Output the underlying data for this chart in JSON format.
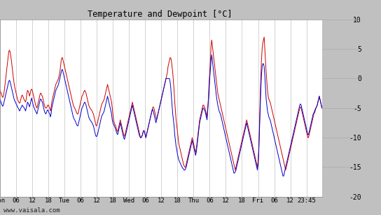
{
  "title": "Temperature and Dewpoint [°C]",
  "ylim": [
    -20,
    10
  ],
  "yticks": [
    10,
    5,
    0,
    -5,
    -10,
    -15,
    -20
  ],
  "fig_bg": "#c0c0c0",
  "plot_bg": "#ffffff",
  "grid_color": "#c0c0c0",
  "temp_color": "#cc0000",
  "dewp_color": "#0000cc",
  "linewidth": 0.7,
  "watermark": "www.vaisala.com",
  "x_tick_labels_str": [
    "Mon",
    "06",
    "12",
    "18",
    "Tue",
    "06",
    "12",
    "18",
    "Wed",
    "06",
    "12",
    "18",
    "Thu",
    "06",
    "12",
    "18",
    "Fri",
    "06",
    "12",
    "23:45"
  ],
  "xtick_positions": [
    0,
    24,
    48,
    72,
    96,
    120,
    144,
    168,
    192,
    216,
    240,
    264,
    288,
    312,
    336,
    360,
    384,
    408,
    432,
    456
  ],
  "total_hours": 479,
  "temp_data": [
    -2.0,
    -2.3,
    -2.6,
    -3.0,
    -3.2,
    -3.0,
    -2.4,
    -1.5,
    -0.5,
    0.5,
    1.5,
    2.5,
    3.5,
    4.5,
    4.8,
    4.5,
    3.8,
    3.0,
    2.0,
    1.0,
    0.0,
    -0.8,
    -1.5,
    -2.0,
    -2.5,
    -3.0,
    -3.5,
    -3.8,
    -4.0,
    -4.2,
    -4.0,
    -3.5,
    -3.0,
    -2.8,
    -3.0,
    -3.3,
    -3.6,
    -3.8,
    -4.0,
    -3.5,
    -2.5,
    -2.0,
    -2.2,
    -2.5,
    -3.0,
    -2.5,
    -2.0,
    -1.8,
    -2.0,
    -2.5,
    -3.0,
    -3.5,
    -4.0,
    -4.5,
    -4.8,
    -5.0,
    -4.5,
    -4.0,
    -3.5,
    -3.0,
    -2.5,
    -2.5,
    -2.8,
    -3.0,
    -3.5,
    -4.0,
    -4.5,
    -4.8,
    -5.0,
    -5.0,
    -4.8,
    -4.5,
    -4.5,
    -4.8,
    -5.0,
    -5.5,
    -5.0,
    -4.0,
    -3.5,
    -3.0,
    -2.5,
    -2.0,
    -1.5,
    -1.0,
    -0.8,
    -0.5,
    -0.3,
    0.0,
    0.5,
    1.0,
    2.0,
    3.0,
    3.5,
    3.5,
    3.0,
    2.5,
    2.0,
    1.5,
    1.0,
    0.5,
    0.0,
    -0.5,
    -1.0,
    -1.5,
    -2.0,
    -2.5,
    -3.0,
    -3.5,
    -4.0,
    -4.5,
    -4.8,
    -5.0,
    -5.2,
    -5.5,
    -5.8,
    -6.0,
    -6.0,
    -5.5,
    -5.0,
    -4.5,
    -4.0,
    -3.5,
    -3.0,
    -2.8,
    -2.5,
    -2.2,
    -2.0,
    -2.2,
    -2.5,
    -3.0,
    -3.5,
    -4.0,
    -4.5,
    -4.8,
    -5.0,
    -5.2,
    -5.3,
    -5.5,
    -5.8,
    -6.0,
    -6.5,
    -7.0,
    -7.5,
    -8.0,
    -8.0,
    -7.5,
    -7.0,
    -6.5,
    -6.0,
    -5.5,
    -5.0,
    -4.5,
    -4.2,
    -4.0,
    -3.8,
    -3.5,
    -3.0,
    -2.5,
    -2.0,
    -1.5,
    -1.0,
    -1.5,
    -2.0,
    -2.5,
    -3.0,
    -3.5,
    -4.0,
    -5.0,
    -6.0,
    -7.0,
    -7.5,
    -7.8,
    -8.0,
    -8.5,
    -8.8,
    -9.0,
    -8.5,
    -8.0,
    -7.5,
    -7.0,
    -7.5,
    -8.0,
    -8.5,
    -9.0,
    -9.5,
    -9.8,
    -9.5,
    -9.0,
    -8.5,
    -8.0,
    -7.5,
    -7.0,
    -6.5,
    -6.0,
    -5.5,
    -5.0,
    -4.5,
    -4.0,
    -4.5,
    -5.0,
    -5.5,
    -6.0,
    -6.5,
    -7.0,
    -7.5,
    -8.0,
    -8.5,
    -9.0,
    -9.5,
    -10.0,
    -10.0,
    -9.8,
    -9.5,
    -9.0,
    -8.8,
    -9.0,
    -9.5,
    -10.0,
    -9.5,
    -9.0,
    -8.5,
    -8.0,
    -7.5,
    -7.0,
    -6.5,
    -6.0,
    -5.5,
    -5.0,
    -4.8,
    -5.0,
    -5.5,
    -6.0,
    -6.5,
    -7.0,
    -6.5,
    -6.0,
    -5.5,
    -5.0,
    -4.5,
    -4.0,
    -3.5,
    -3.0,
    -2.5,
    -2.0,
    -1.5,
    -1.0,
    -0.5,
    0.0,
    0.5,
    1.0,
    2.0,
    2.5,
    3.0,
    3.5,
    3.5,
    3.0,
    2.0,
    1.0,
    -0.5,
    -2.0,
    -4.0,
    -5.5,
    -7.0,
    -8.0,
    -9.0,
    -10.0,
    -11.0,
    -11.5,
    -12.0,
    -12.5,
    -13.0,
    -13.5,
    -14.0,
    -14.5,
    -14.8,
    -15.0,
    -15.0,
    -14.5,
    -14.0,
    -13.5,
    -13.0,
    -12.5,
    -12.0,
    -11.5,
    -11.0,
    -10.5,
    -10.0,
    -10.5,
    -11.0,
    -11.5,
    -12.0,
    -12.5,
    -12.0,
    -11.0,
    -10.0,
    -9.0,
    -8.0,
    -7.0,
    -6.5,
    -6.0,
    -5.5,
    -5.0,
    -4.5,
    -4.5,
    -4.8,
    -5.0,
    -5.5,
    -6.0,
    -6.5,
    -5.0,
    -3.5,
    -1.0,
    1.0,
    3.0,
    5.5,
    6.5,
    5.5,
    4.5,
    3.5,
    2.5,
    1.5,
    0.5,
    -0.5,
    -1.5,
    -2.5,
    -3.0,
    -3.5,
    -4.0,
    -4.5,
    -5.0,
    -5.5,
    -6.0,
    -6.5,
    -7.0,
    -7.5,
    -8.0,
    -8.5,
    -9.0,
    -9.5,
    -10.0,
    -10.5,
    -11.0,
    -11.5,
    -12.0,
    -12.5,
    -13.0,
    -13.5,
    -14.0,
    -14.5,
    -15.0,
    -15.5,
    -15.0,
    -14.5,
    -14.0,
    -13.5,
    -13.0,
    -12.5,
    -12.0,
    -11.5,
    -11.0,
    -10.5,
    -10.0,
    -9.5,
    -9.0,
    -8.5,
    -8.0,
    -7.5,
    -7.0,
    -7.5,
    -8.0,
    -8.5,
    -9.0,
    -9.5,
    -10.0,
    -10.5,
    -11.0,
    -11.5,
    -12.0,
    -12.5,
    -13.0,
    -13.5,
    -14.0,
    -14.5,
    -15.0,
    -14.0,
    -12.0,
    -8.0,
    -4.0,
    0.0,
    3.0,
    5.0,
    6.0,
    6.5,
    7.0,
    5.0,
    3.0,
    1.0,
    -0.5,
    -2.0,
    -3.0,
    -3.5,
    -3.8,
    -4.0,
    -4.5,
    -5.0,
    -5.5,
    -6.0,
    -6.5,
    -7.0,
    -7.5,
    -8.0,
    -8.5,
    -9.0,
    -9.5,
    -10.0,
    -10.5,
    -11.0,
    -11.5,
    -12.0,
    -12.5,
    -13.0,
    -13.5,
    -14.0,
    -14.5,
    -15.0,
    -15.5,
    -15.0,
    -14.5,
    -14.0,
    -13.5,
    -13.0,
    -12.5,
    -12.0,
    -11.5,
    -11.0,
    -10.5,
    -10.0,
    -9.5,
    -9.0,
    -8.5,
    -8.0,
    -7.5,
    -7.0,
    -6.5,
    -6.0,
    -5.5,
    -5.0,
    -4.8,
    -5.0,
    -5.5,
    -6.0,
    -6.5,
    -7.0,
    -7.5,
    -8.0,
    -8.5,
    -9.0,
    -9.5,
    -10.0,
    -10.0,
    -9.5,
    -9.0,
    -8.5,
    -8.0,
    -7.5,
    -7.0,
    -6.5,
    -6.0,
    -5.8,
    -5.5,
    -5.0,
    -4.8,
    -4.5,
    -4.0,
    -3.5,
    -3.0,
    -3.5,
    -4.0,
    -4.5,
    -5.0
  ],
  "dewp_data": [
    -3.5,
    -3.8,
    -4.2,
    -4.5,
    -4.7,
    -4.5,
    -4.0,
    -3.5,
    -3.0,
    -2.5,
    -2.0,
    -1.5,
    -1.0,
    -0.5,
    -0.3,
    -0.5,
    -1.0,
    -1.5,
    -2.0,
    -2.5,
    -3.0,
    -3.5,
    -3.8,
    -4.0,
    -4.3,
    -4.5,
    -4.8,
    -5.0,
    -5.2,
    -5.5,
    -5.3,
    -5.0,
    -4.8,
    -4.5,
    -4.7,
    -4.8,
    -5.0,
    -5.2,
    -5.5,
    -5.0,
    -4.5,
    -4.0,
    -4.2,
    -4.5,
    -4.8,
    -4.3,
    -3.8,
    -3.3,
    -3.8,
    -4.3,
    -4.8,
    -5.0,
    -5.3,
    -5.5,
    -5.8,
    -6.0,
    -5.5,
    -5.0,
    -4.5,
    -4.0,
    -3.5,
    -3.5,
    -3.8,
    -4.0,
    -4.5,
    -5.0,
    -5.5,
    -5.8,
    -6.0,
    -5.8,
    -5.5,
    -5.3,
    -5.5,
    -5.8,
    -6.0,
    -6.5,
    -6.0,
    -5.0,
    -4.5,
    -4.0,
    -3.5,
    -3.0,
    -2.5,
    -2.0,
    -1.8,
    -1.5,
    -1.3,
    -1.0,
    -0.5,
    0.0,
    0.5,
    1.0,
    1.5,
    1.5,
    1.0,
    0.5,
    0.0,
    -0.5,
    -1.0,
    -1.5,
    -2.0,
    -2.5,
    -3.0,
    -3.5,
    -4.0,
    -4.5,
    -5.0,
    -5.5,
    -6.0,
    -6.5,
    -6.8,
    -7.0,
    -7.2,
    -7.5,
    -7.8,
    -8.0,
    -8.0,
    -7.5,
    -7.0,
    -6.5,
    -6.0,
    -5.5,
    -5.0,
    -4.8,
    -4.5,
    -4.2,
    -4.0,
    -4.2,
    -4.5,
    -5.0,
    -5.5,
    -6.0,
    -6.5,
    -6.8,
    -7.0,
    -7.2,
    -7.3,
    -7.5,
    -7.8,
    -8.0,
    -8.5,
    -9.0,
    -9.5,
    -9.8,
    -9.8,
    -9.5,
    -9.0,
    -8.5,
    -8.0,
    -7.5,
    -7.0,
    -6.5,
    -6.2,
    -6.0,
    -5.8,
    -5.5,
    -5.0,
    -4.5,
    -4.0,
    -3.5,
    -3.0,
    -3.5,
    -4.0,
    -4.5,
    -5.0,
    -5.5,
    -6.0,
    -7.0,
    -7.5,
    -7.8,
    -8.0,
    -8.3,
    -8.5,
    -9.0,
    -9.3,
    -9.5,
    -9.0,
    -8.5,
    -8.0,
    -7.5,
    -8.0,
    -8.5,
    -9.0,
    -9.5,
    -10.0,
    -10.3,
    -10.0,
    -9.5,
    -9.0,
    -8.5,
    -8.0,
    -7.5,
    -7.0,
    -6.5,
    -6.0,
    -5.5,
    -5.0,
    -4.5,
    -5.0,
    -5.5,
    -6.0,
    -6.5,
    -7.0,
    -7.5,
    -8.0,
    -8.5,
    -9.0,
    -9.5,
    -9.8,
    -10.0,
    -10.0,
    -9.8,
    -9.5,
    -9.0,
    -8.8,
    -9.0,
    -9.5,
    -10.0,
    -9.5,
    -9.0,
    -8.5,
    -8.0,
    -7.5,
    -7.0,
    -6.5,
    -6.0,
    -5.5,
    -5.2,
    -5.5,
    -6.0,
    -6.5,
    -7.0,
    -7.5,
    -7.0,
    -6.5,
    -6.0,
    -5.5,
    -5.0,
    -4.5,
    -4.0,
    -3.5,
    -3.0,
    -2.5,
    -2.0,
    -1.5,
    -1.0,
    -0.5,
    0.0,
    0.0,
    0.0,
    0.0,
    0.0,
    0.0,
    -0.5,
    -1.5,
    -3.0,
    -4.5,
    -6.0,
    -7.0,
    -8.0,
    -9.5,
    -10.5,
    -11.5,
    -12.0,
    -12.8,
    -13.3,
    -13.8,
    -14.0,
    -14.3,
    -14.5,
    -14.8,
    -15.0,
    -15.2,
    -15.3,
    -15.5,
    -15.5,
    -15.3,
    -15.0,
    -14.5,
    -14.0,
    -13.5,
    -13.0,
    -12.5,
    -12.0,
    -11.5,
    -11.0,
    -10.5,
    -11.0,
    -11.5,
    -12.0,
    -12.5,
    -13.0,
    -12.5,
    -11.5,
    -10.5,
    -9.5,
    -8.5,
    -7.5,
    -7.0,
    -6.5,
    -6.0,
    -5.5,
    -5.0,
    -5.0,
    -5.3,
    -5.5,
    -6.0,
    -6.5,
    -7.0,
    -5.5,
    -4.0,
    -2.0,
    0.0,
    1.5,
    3.0,
    4.0,
    3.0,
    2.0,
    1.0,
    0.0,
    -1.0,
    -2.0,
    -3.0,
    -3.8,
    -4.5,
    -5.0,
    -5.5,
    -5.8,
    -6.0,
    -6.5,
    -7.0,
    -7.5,
    -8.0,
    -8.5,
    -9.0,
    -9.5,
    -10.0,
    -10.5,
    -11.0,
    -11.5,
    -12.0,
    -12.5,
    -13.0,
    -13.5,
    -14.0,
    -14.5,
    -15.0,
    -15.5,
    -16.0,
    -16.0,
    -15.8,
    -15.5,
    -15.0,
    -14.5,
    -14.0,
    -13.5,
    -13.0,
    -12.5,
    -12.0,
    -11.5,
    -11.0,
    -10.5,
    -10.0,
    -9.5,
    -9.0,
    -8.5,
    -8.0,
    -7.5,
    -8.0,
    -8.5,
    -9.0,
    -9.5,
    -10.0,
    -10.5,
    -11.0,
    -11.5,
    -12.0,
    -12.5,
    -13.0,
    -13.5,
    -14.0,
    -14.5,
    -15.0,
    -15.5,
    -14.5,
    -12.5,
    -9.0,
    -5.5,
    -2.0,
    0.5,
    2.0,
    2.5,
    2.5,
    2.0,
    0.5,
    -1.5,
    -3.5,
    -4.5,
    -5.5,
    -6.0,
    -6.5,
    -6.8,
    -7.0,
    -7.5,
    -8.0,
    -8.5,
    -9.0,
    -9.5,
    -10.0,
    -10.5,
    -11.0,
    -11.5,
    -12.0,
    -12.5,
    -13.0,
    -13.5,
    -14.0,
    -14.5,
    -15.0,
    -15.5,
    -16.0,
    -16.5,
    -16.5,
    -16.0,
    -15.5,
    -15.0,
    -14.5,
    -14.0,
    -13.5,
    -13.0,
    -12.5,
    -12.0,
    -11.5,
    -11.0,
    -10.5,
    -10.0,
    -9.5,
    -9.0,
    -8.5,
    -8.0,
    -7.5,
    -7.0,
    -6.5,
    -6.0,
    -5.5,
    -5.0,
    -4.5,
    -4.3,
    -4.5,
    -5.0,
    -5.5,
    -6.0,
    -6.5,
    -7.0,
    -7.5,
    -8.0,
    -8.5,
    -9.0,
    -9.5,
    -9.5,
    -9.0,
    -8.5,
    -8.0,
    -7.5,
    -7.0,
    -6.5,
    -6.0,
    -5.8,
    -5.5,
    -5.2,
    -5.0,
    -4.8,
    -4.5,
    -4.0,
    -3.5,
    -3.0,
    -3.5,
    -4.0,
    -4.5,
    -5.0
  ]
}
